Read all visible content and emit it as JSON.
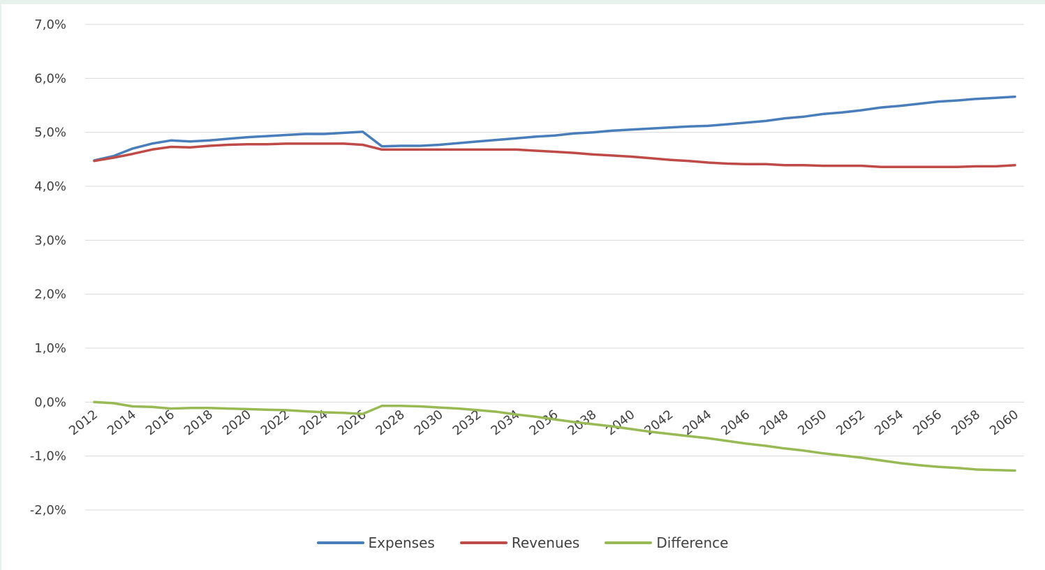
{
  "chart_data": {
    "type": "line",
    "title": "",
    "xlabel": "",
    "ylabel": "",
    "ylim": [
      -2.0,
      7.0
    ],
    "y_ticks": [
      "-2,0%",
      "-1,0%",
      "0,0%",
      "1,0%",
      "2,0%",
      "3,0%",
      "4,0%",
      "5,0%",
      "6,0%",
      "7,0%"
    ],
    "x_tick_labels": [
      "2012",
      "2014",
      "2016",
      "2018",
      "2020",
      "2022",
      "2024",
      "2026",
      "2028",
      "2030",
      "2032",
      "2034",
      "2036",
      "2038",
      "2040",
      "2042",
      "2044",
      "2046",
      "2048",
      "2050",
      "2052",
      "2054",
      "2056",
      "2058",
      "2060"
    ],
    "x": [
      2012,
      2013,
      2014,
      2015,
      2016,
      2017,
      2018,
      2019,
      2020,
      2021,
      2022,
      2023,
      2024,
      2025,
      2026,
      2027,
      2028,
      2029,
      2030,
      2031,
      2032,
      2033,
      2034,
      2035,
      2036,
      2037,
      2038,
      2039,
      2040,
      2041,
      2042,
      2043,
      2044,
      2045,
      2046,
      2047,
      2048,
      2049,
      2050,
      2051,
      2052,
      2053,
      2054,
      2055,
      2056,
      2057,
      2058,
      2059,
      2060
    ],
    "grid": true,
    "legend_position": "bottom",
    "series": [
      {
        "name": "Expenses",
        "color": "#4a7ebb",
        "values": [
          4.48,
          4.56,
          4.7,
          4.79,
          4.85,
          4.83,
          4.85,
          4.88,
          4.91,
          4.93,
          4.95,
          4.97,
          4.97,
          4.99,
          5.01,
          4.74,
          4.75,
          4.75,
          4.77,
          4.8,
          4.83,
          4.86,
          4.89,
          4.92,
          4.94,
          4.98,
          5.0,
          5.03,
          5.05,
          5.07,
          5.09,
          5.11,
          5.12,
          5.15,
          5.18,
          5.21,
          5.26,
          5.29,
          5.34,
          5.37,
          5.41,
          5.46,
          5.49,
          5.53,
          5.57,
          5.59,
          5.62,
          5.64,
          5.66
        ]
      },
      {
        "name": "Revenues",
        "color": "#be4b48",
        "values": [
          4.47,
          4.53,
          4.6,
          4.68,
          4.73,
          4.72,
          4.75,
          4.77,
          4.78,
          4.78,
          4.79,
          4.79,
          4.79,
          4.79,
          4.77,
          4.68,
          4.68,
          4.68,
          4.68,
          4.68,
          4.68,
          4.68,
          4.68,
          4.66,
          4.64,
          4.62,
          4.59,
          4.57,
          4.55,
          4.52,
          4.49,
          4.47,
          4.44,
          4.42,
          4.41,
          4.41,
          4.39,
          4.39,
          4.38,
          4.38,
          4.38,
          4.36,
          4.36,
          4.36,
          4.36,
          4.36,
          4.37,
          4.37,
          4.39
        ]
      },
      {
        "name": "Difference",
        "color": "#98b954",
        "values": [
          0.0,
          -0.02,
          -0.08,
          -0.09,
          -0.12,
          -0.11,
          -0.11,
          -0.12,
          -0.13,
          -0.14,
          -0.15,
          -0.17,
          -0.19,
          -0.2,
          -0.22,
          -0.07,
          -0.07,
          -0.08,
          -0.1,
          -0.12,
          -0.15,
          -0.18,
          -0.23,
          -0.27,
          -0.32,
          -0.37,
          -0.41,
          -0.45,
          -0.5,
          -0.55,
          -0.59,
          -0.63,
          -0.67,
          -0.72,
          -0.77,
          -0.81,
          -0.86,
          -0.9,
          -0.95,
          -0.99,
          -1.03,
          -1.08,
          -1.13,
          -1.17,
          -1.2,
          -1.22,
          -1.25,
          -1.26,
          -1.27
        ]
      }
    ]
  }
}
